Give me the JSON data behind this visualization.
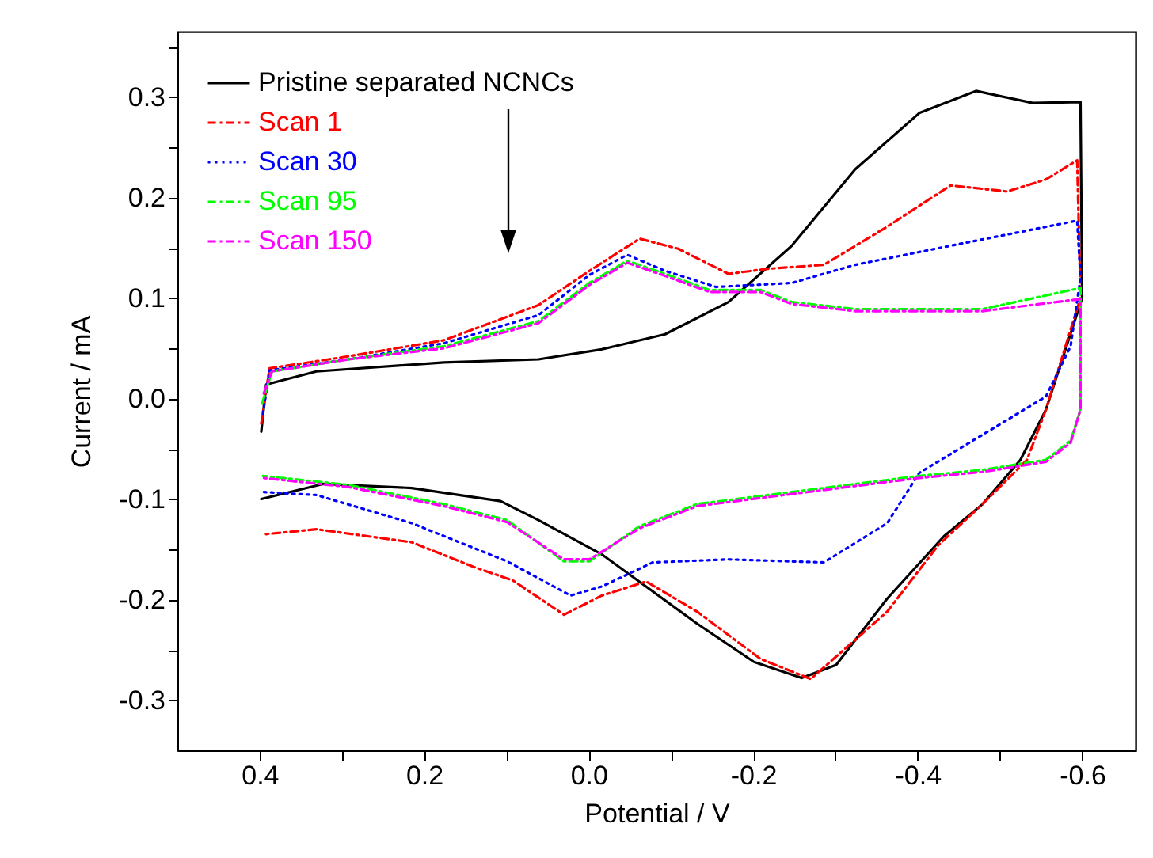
{
  "chart_data": {
    "type": "line",
    "xlabel": "Potential / V",
    "ylabel": "Current / mA",
    "xlim": [
      0.5,
      -0.665
    ],
    "ylim": [
      -0.35,
      0.365
    ],
    "xticks": [
      0.4,
      {
        "value": 0.3,
        "label": null
      },
      0.2,
      {
        "value": 0.1,
        "label": null
      },
      {
        "value": 0,
        "label": "0.0"
      },
      {
        "value": -0.1,
        "label": null
      },
      -0.2,
      {
        "value": -0.3,
        "label": null
      },
      -0.4,
      {
        "value": -0.5,
        "label": null
      },
      -0.6
    ],
    "yticks": [
      -0.3,
      {
        "value": -0.25,
        "label": null
      },
      -0.2,
      {
        "value": -0.15,
        "label": null
      },
      -0.1,
      {
        "value": -0.05,
        "label": null
      },
      {
        "value": 0,
        "label": "0.0"
      },
      {
        "value": 0.05,
        "label": null
      },
      0.1,
      {
        "value": 0.15,
        "label": null
      },
      0.2,
      {
        "value": 0.25,
        "label": null
      },
      0.3,
      {
        "value": 0.35,
        "label": null
      }
    ],
    "grid": false,
    "legend": "top left",
    "series": [
      {
        "name": "Pristine separated NCNCs",
        "color": "#000000",
        "line_style": "solid",
        "x": [
          0.398,
          0.392,
          0.331,
          0.176,
          0.061,
          -0.016,
          -0.093,
          -0.17,
          -0.247,
          -0.324,
          -0.402,
          -0.471,
          -0.54,
          -0.598,
          -0.6,
          -0.556,
          -0.525,
          -0.479,
          -0.432,
          -0.363,
          -0.301,
          -0.259,
          -0.201,
          -0.132,
          -0.016,
          0.061,
          0.107,
          0.215,
          0.323,
          0.398
        ],
        "values": [
          -0.033,
          0.014,
          0.027,
          0.036,
          0.039,
          0.049,
          0.064,
          0.096,
          0.152,
          0.228,
          0.284,
          0.306,
          0.294,
          0.295,
          0.1,
          -0.011,
          -0.061,
          -0.105,
          -0.137,
          -0.199,
          -0.265,
          -0.278,
          -0.262,
          -0.224,
          -0.155,
          -0.121,
          -0.102,
          -0.089,
          -0.085,
          -0.1
        ]
      },
      {
        "name": "Scan 1",
        "color": "#ff0000",
        "line_style": "dashed",
        "x": [
          0.398,
          0.388,
          0.292,
          0.176,
          0.061,
          -0.001,
          -0.062,
          -0.109,
          -0.17,
          -0.217,
          -0.286,
          -0.363,
          -0.44,
          -0.509,
          -0.556,
          -0.594,
          -0.598,
          -0.556,
          -0.533,
          -0.479,
          -0.425,
          -0.363,
          -0.27,
          -0.209,
          -0.132,
          -0.07,
          -0.016,
          0.03,
          0.092,
          0.138,
          0.215,
          0.331,
          0.394
        ],
        "values": [
          -0.025,
          0.03,
          0.042,
          0.058,
          0.093,
          0.127,
          0.159,
          0.149,
          0.124,
          0.129,
          0.133,
          0.171,
          0.212,
          0.206,
          0.218,
          0.237,
          0.1,
          -0.011,
          -0.061,
          -0.105,
          -0.146,
          -0.212,
          -0.279,
          -0.259,
          -0.212,
          -0.182,
          -0.196,
          -0.215,
          -0.181,
          -0.168,
          -0.143,
          -0.13,
          -0.135
        ]
      },
      {
        "name": "Scan 30",
        "color": "#0000ff",
        "line_style": "dotted",
        "x": [
          0.396,
          0.388,
          0.292,
          0.176,
          0.061,
          -0.001,
          -0.047,
          -0.093,
          -0.155,
          -0.247,
          -0.324,
          -0.44,
          -0.594,
          -0.598,
          -0.586,
          -0.556,
          -0.479,
          -0.402,
          -0.363,
          -0.286,
          -0.17,
          -0.078,
          -0.016,
          0.022,
          0.099,
          0.215,
          0.331,
          0.396
        ],
        "values": [
          -0.015,
          0.028,
          0.039,
          0.055,
          0.083,
          0.123,
          0.143,
          0.127,
          0.111,
          0.115,
          0.133,
          0.152,
          0.177,
          0.12,
          0.052,
          0.002,
          -0.036,
          -0.074,
          -0.124,
          -0.163,
          -0.16,
          -0.163,
          -0.187,
          -0.196,
          -0.162,
          -0.124,
          -0.096,
          -0.093
        ]
      },
      {
        "name": "Scan 95",
        "color": "#00ff00",
        "line_style": "dashed",
        "x": [
          0.397,
          0.385,
          0.292,
          0.176,
          0.061,
          -0.001,
          -0.047,
          -0.093,
          -0.147,
          -0.209,
          -0.247,
          -0.324,
          -0.479,
          -0.598,
          -0.598,
          -0.586,
          -0.556,
          -0.479,
          -0.402,
          -0.247,
          -0.132,
          -0.062,
          -0.001,
          0.03,
          0.099,
          0.176,
          0.292,
          0.396
        ],
        "values": [
          -0.005,
          0.027,
          0.039,
          0.052,
          0.077,
          0.115,
          0.137,
          0.124,
          0.108,
          0.108,
          0.096,
          0.089,
          0.089,
          0.11,
          -0.011,
          -0.042,
          -0.061,
          -0.071,
          -0.077,
          -0.093,
          -0.105,
          -0.127,
          -0.162,
          -0.162,
          -0.121,
          -0.105,
          -0.086,
          -0.077
        ]
      },
      {
        "name": "Scan 150",
        "color": "#ff00ff",
        "line_style": "dashed",
        "x": [
          0.395,
          0.385,
          0.292,
          0.176,
          0.061,
          -0.001,
          -0.047,
          -0.093,
          -0.147,
          -0.209,
          -0.247,
          -0.324,
          -0.479,
          -0.598,
          -0.598,
          -0.586,
          -0.556,
          -0.479,
          -0.402,
          -0.247,
          -0.132,
          -0.062,
          -0.001,
          0.03,
          0.099,
          0.176,
          0.292,
          0.396
        ],
        "values": [
          0.005,
          0.027,
          0.039,
          0.05,
          0.075,
          0.113,
          0.135,
          0.122,
          0.106,
          0.106,
          0.094,
          0.087,
          0.087,
          0.099,
          -0.011,
          -0.044,
          -0.063,
          -0.073,
          -0.079,
          -0.095,
          -0.107,
          -0.129,
          -0.16,
          -0.16,
          -0.123,
          -0.107,
          -0.088,
          -0.079
        ]
      }
    ]
  }
}
